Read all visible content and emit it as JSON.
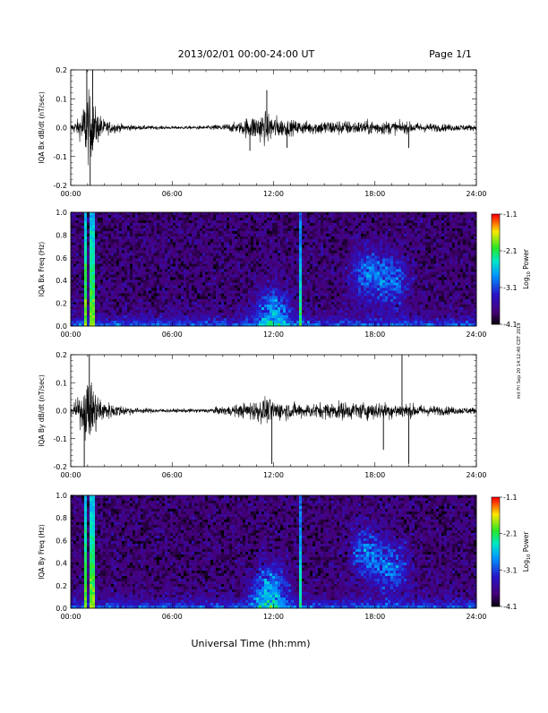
{
  "header": {
    "title": "2013/02/01   00:00-24:00 UT",
    "page_label": "Page 1/1"
  },
  "side_note": "mit Fri Sep 20 14:12:40 CDT 2019",
  "footer": {
    "xlabel": "Universal Time (hh:mm)"
  },
  "colorbar": {
    "title": "Log10 Power",
    "title_main": "Log",
    "title_sub": "10",
    "title_rest": " Power",
    "ticks": [
      "-1.1",
      "-2.1",
      "-3.1",
      "-4.1"
    ]
  },
  "chart_data": [
    {
      "type": "line",
      "ylabel": "IQA Bx dB/dt (nT/sec)",
      "xlim": [
        0,
        24
      ],
      "ylim": [
        -0.2,
        0.2
      ],
      "x_ticks": [
        "00:00",
        "06:00",
        "12:00",
        "18:00",
        "24:00"
      ],
      "y_ticks": [
        "0.2",
        "0.1",
        "0.0",
        "-0.1",
        "-0.2"
      ],
      "envelope": {
        "x": [
          0,
          0.5,
          1.0,
          1.5,
          2.0,
          3.0,
          4.0,
          6.0,
          8.0,
          10.0,
          10.5,
          11.0,
          11.5,
          12.0,
          12.5,
          13.0,
          14.0,
          15.0,
          16.0,
          17.0,
          18.0,
          19.0,
          20.0,
          21.0,
          22.0,
          23.0,
          24.0
        ],
        "amp": [
          0.02,
          0.05,
          0.2,
          0.1,
          0.04,
          0.02,
          0.012,
          0.008,
          0.01,
          0.03,
          0.06,
          0.07,
          0.09,
          0.07,
          0.05,
          0.04,
          0.035,
          0.04,
          0.04,
          0.035,
          0.04,
          0.035,
          0.03,
          0.025,
          0.02,
          0.018,
          0.015
        ]
      },
      "spikes": [
        {
          "x": 0.95,
          "y": 0.2
        },
        {
          "x": 1.15,
          "y": -0.2
        },
        {
          "x": 1.3,
          "y": 0.2
        },
        {
          "x": 10.6,
          "y": -0.08
        },
        {
          "x": 11.6,
          "y": 0.13
        },
        {
          "x": 12.8,
          "y": -0.07
        },
        {
          "x": 20.0,
          "y": -0.07
        }
      ]
    },
    {
      "type": "heatmap",
      "ylabel": "IQA Bx Freq (Hz)",
      "xlim": [
        0,
        24
      ],
      "ylim": [
        0.0,
        1.0
      ],
      "x_ticks": [
        "00:00",
        "06:00",
        "12:00",
        "18:00",
        "24:00"
      ],
      "y_ticks": [
        "1.0",
        "0.8",
        "0.6",
        "0.4",
        "0.2",
        "0.0"
      ],
      "color_range": [
        -4.1,
        -1.1
      ],
      "features": [
        {
          "kind": "line",
          "x": 0.9,
          "level": -1.8
        },
        {
          "kind": "line",
          "x": 1.25,
          "level": -1.8
        },
        {
          "kind": "line",
          "x": 13.6,
          "level": -2.2
        },
        {
          "kind": "blob",
          "x": 12.0,
          "y": 0.12,
          "level": -2.7
        },
        {
          "kind": "blob",
          "x": 17.5,
          "y": 0.45,
          "level": -2.9
        },
        {
          "kind": "blob",
          "x": 19.0,
          "y": 0.4,
          "level": -2.9
        }
      ]
    },
    {
      "type": "line",
      "ylabel": "IQA By dB/dt (nT/sec)",
      "xlim": [
        0,
        24
      ],
      "ylim": [
        -0.2,
        0.2
      ],
      "x_ticks": [
        "00:00",
        "06:00",
        "12:00",
        "18:00",
        "24:00"
      ],
      "y_ticks": [
        "0.2",
        "0.1",
        "0.0",
        "-0.1",
        "-0.2"
      ],
      "envelope": {
        "x": [
          0,
          0.5,
          1.0,
          1.5,
          2.0,
          3.0,
          4.0,
          6.0,
          8.0,
          10.0,
          10.5,
          11.0,
          11.5,
          12.0,
          12.5,
          13.0,
          14.0,
          15.0,
          16.0,
          17.0,
          18.0,
          19.0,
          20.0,
          21.0,
          22.0,
          23.0,
          24.0
        ],
        "amp": [
          0.03,
          0.07,
          0.18,
          0.12,
          0.05,
          0.03,
          0.015,
          0.01,
          0.012,
          0.035,
          0.05,
          0.06,
          0.07,
          0.06,
          0.05,
          0.045,
          0.04,
          0.045,
          0.05,
          0.045,
          0.05,
          0.045,
          0.04,
          0.03,
          0.025,
          0.02,
          0.018
        ]
      },
      "spikes": [
        {
          "x": 0.8,
          "y": -0.2
        },
        {
          "x": 1.1,
          "y": 0.2
        },
        {
          "x": 11.9,
          "y": -0.19
        },
        {
          "x": 19.6,
          "y": 0.2
        },
        {
          "x": 20.0,
          "y": -0.19
        },
        {
          "x": 18.5,
          "y": -0.14
        }
      ]
    },
    {
      "type": "heatmap",
      "ylabel": "IQA By Freq (Hz)",
      "xlim": [
        0,
        24
      ],
      "ylim": [
        0.0,
        1.0
      ],
      "x_ticks": [
        "00:00",
        "06:00",
        "12:00",
        "18:00",
        "24:00"
      ],
      "y_ticks": [
        "1.0",
        "0.8",
        "0.6",
        "0.4",
        "0.2",
        "0.0"
      ],
      "color_range": [
        -4.1,
        -1.1
      ],
      "features": [
        {
          "kind": "line",
          "x": 0.9,
          "level": -1.8
        },
        {
          "kind": "line",
          "x": 1.25,
          "level": -1.8
        },
        {
          "kind": "line",
          "x": 13.6,
          "level": -2.2
        },
        {
          "kind": "blob",
          "x": 11.8,
          "y": 0.15,
          "level": -2.5
        },
        {
          "kind": "blob",
          "x": 17.5,
          "y": 0.5,
          "level": -2.9
        },
        {
          "kind": "blob",
          "x": 19.0,
          "y": 0.35,
          "level": -2.9
        }
      ]
    }
  ]
}
